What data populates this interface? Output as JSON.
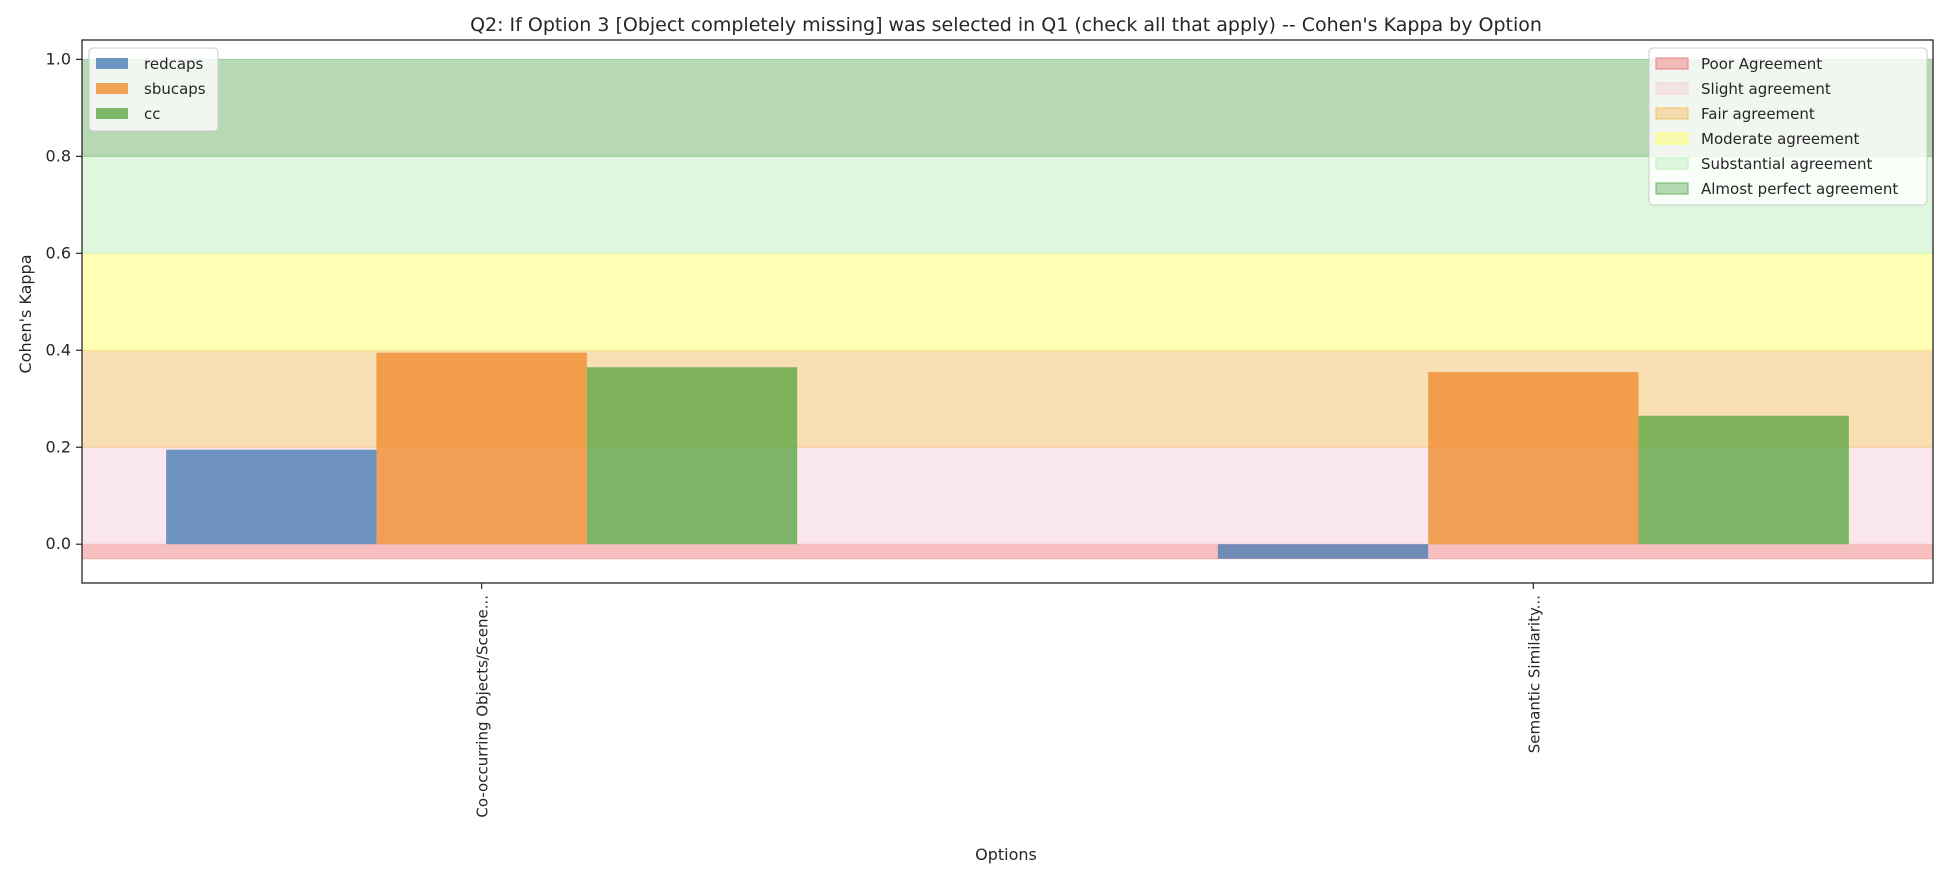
{
  "chart_data": {
    "type": "bar",
    "title": "Q2: If Option 3 [Object completely missing] was selected in Q1 (check all that apply) -- Cohen's Kappa by Option",
    "xlabel": "Options",
    "ylabel": "Cohen's Kappa",
    "categories": [
      "Co-occurring Objects/Scene...",
      "Semantic Similarity..."
    ],
    "series": [
      {
        "name": "redcaps",
        "color": "#4c7eb6",
        "values": [
          0.195,
          -0.03
        ]
      },
      {
        "name": "sbucaps",
        "color": "#f08c2e",
        "values": [
          0.395,
          0.355
        ]
      },
      {
        "name": "cc",
        "color": "#5fa745",
        "values": [
          0.365,
          0.265
        ]
      }
    ],
    "ylim": [
      -0.08,
      1.04
    ],
    "yticks": [
      0.0,
      0.2,
      0.4,
      0.6,
      0.8,
      1.0
    ],
    "ytick_labels": [
      "0.0",
      "0.2",
      "0.4",
      "0.6",
      "0.8",
      "1.0"
    ],
    "grid": false,
    "series_legend_placement": "upper left",
    "bands_legend_placement": "upper right",
    "bands": [
      {
        "name": "Poor Agreement",
        "range": [
          -0.03,
          0.0
        ],
        "color": "#f08080"
      },
      {
        "name": "Slight agreement",
        "range": [
          0.0,
          0.2
        ],
        "color": "#f5d0d8"
      },
      {
        "name": "Fair agreement",
        "range": [
          0.2,
          0.4
        ],
        "color": "#f3c069"
      },
      {
        "name": "Moderate agreement",
        "range": [
          0.4,
          0.6
        ],
        "color": "#ffff6e"
      },
      {
        "name": "Substantial agreement",
        "range": [
          0.6,
          0.8
        ],
        "color": "#bfefbf"
      },
      {
        "name": "Almost perfect agreement",
        "range": [
          0.8,
          1.0
        ],
        "color": "#70b26a"
      }
    ]
  }
}
